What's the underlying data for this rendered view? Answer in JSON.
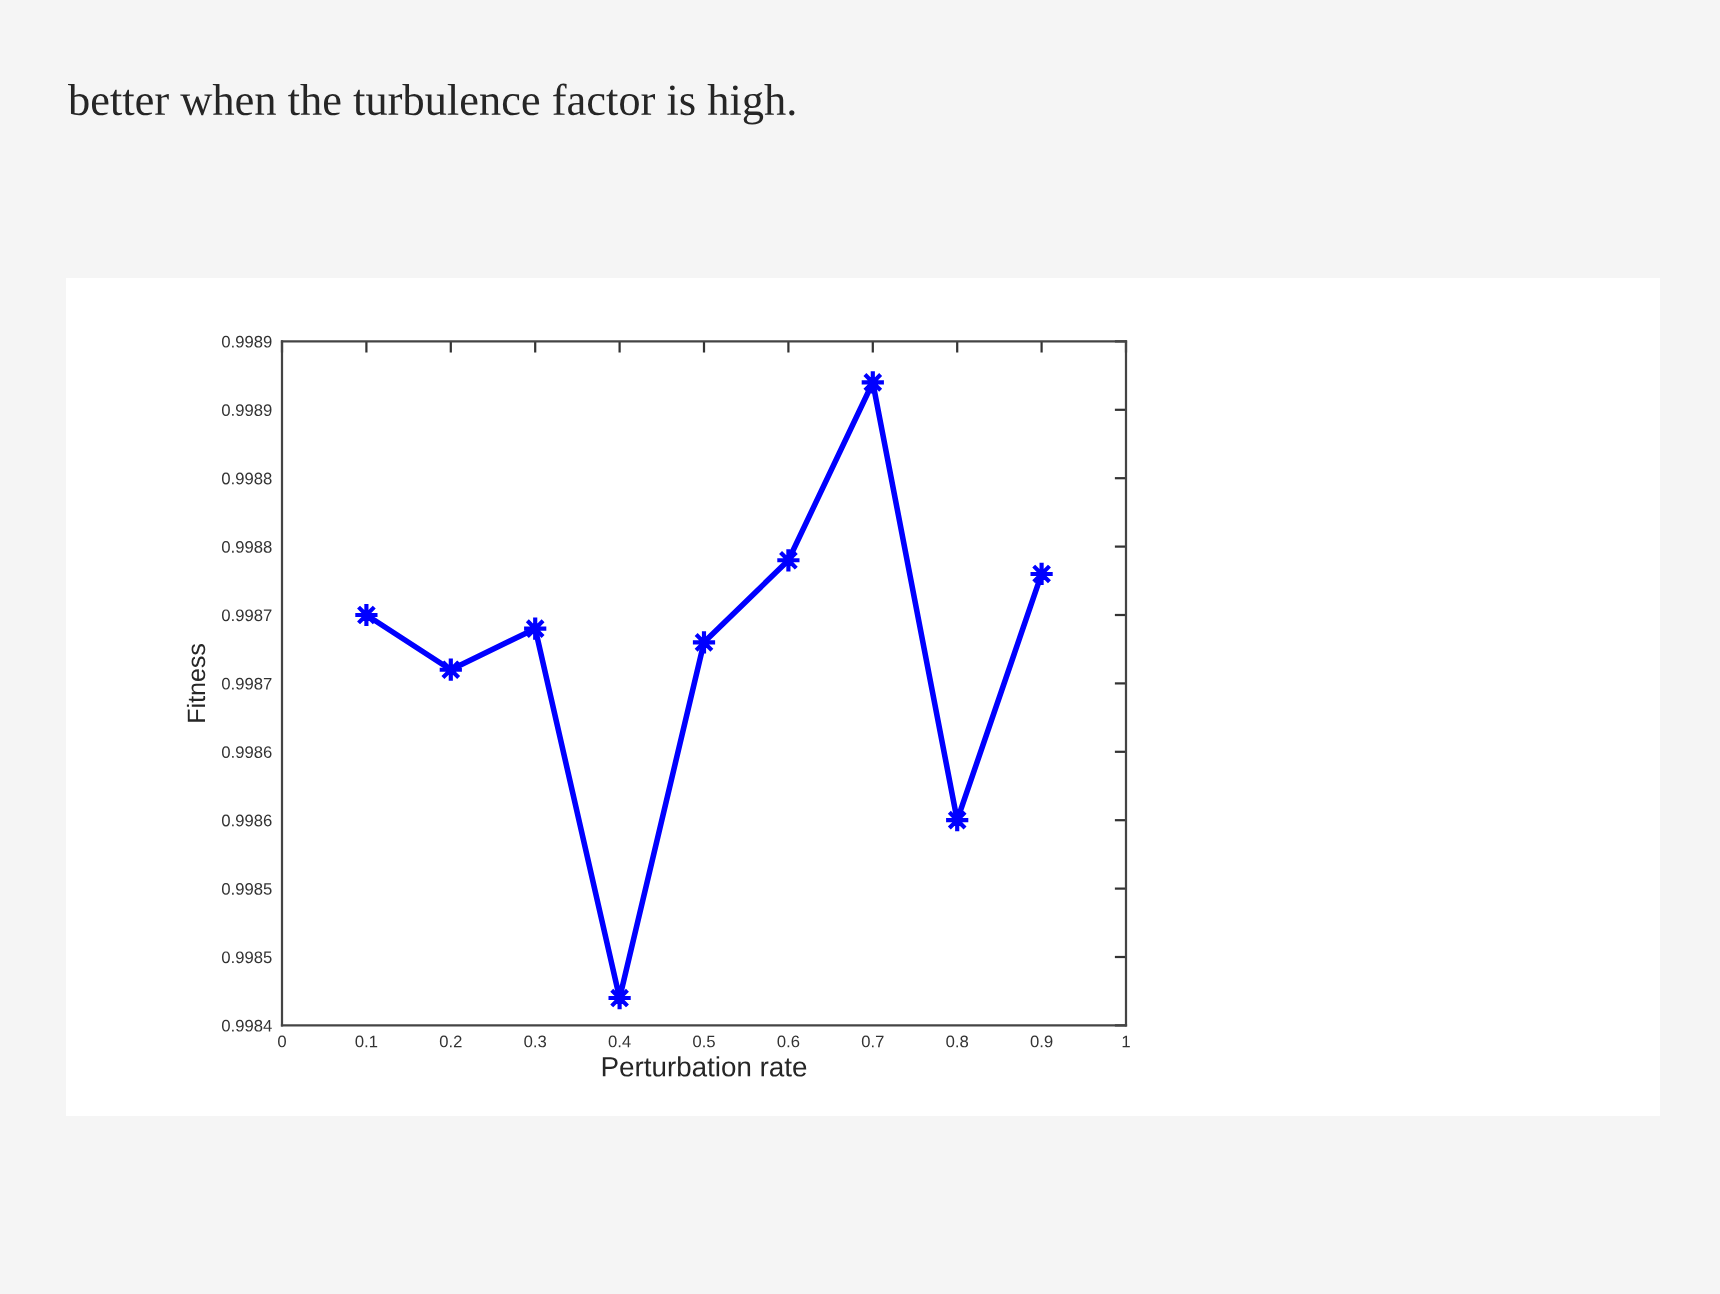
{
  "chart_data": {
    "type": "line",
    "xlabel": "Perturbation rate",
    "ylabel": "Fitness",
    "annotations": [
      "better when the turbulence factor is high."
    ],
    "x": [
      0.1,
      0.2,
      0.3,
      0.4,
      0.5,
      0.6,
      0.7,
      0.8,
      0.9
    ],
    "series": [
      {
        "color": "#0000ff",
        "values": [
          0.9987,
          0.99866,
          0.99869,
          0.99842,
          0.99868,
          0.99874,
          0.99887,
          0.99855,
          0.99873
        ]
      }
    ],
    "xlim": [
      0,
      1
    ],
    "xticks": [
      0,
      0.1,
      0.2,
      0.3,
      0.4,
      0.5,
      0.6,
      0.7,
      0.8,
      0.9,
      1
    ],
    "ylim": [
      0.9984,
      0.9989
    ],
    "yticks": [
      {
        "value": 0.9984,
        "label": "0.9984"
      },
      {
        "value": 0.99845,
        "label": "0.9985"
      },
      {
        "value": 0.9985,
        "label": "0.9985"
      },
      {
        "value": 0.99855,
        "label": "0.9986"
      },
      {
        "value": 0.9986,
        "label": "0.9986"
      },
      {
        "value": 0.99865,
        "label": "0.9987"
      },
      {
        "value": 0.9987,
        "label": "0.9987"
      },
      {
        "value": 0.99875,
        "label": "0.9988"
      },
      {
        "value": 0.9988,
        "label": "0.9988"
      },
      {
        "value": 0.99885,
        "label": "0.9989"
      },
      {
        "value": 0.9989,
        "label": "0.9989"
      }
    ],
    "grid": false,
    "marker": "star",
    "line_style": "solid"
  }
}
